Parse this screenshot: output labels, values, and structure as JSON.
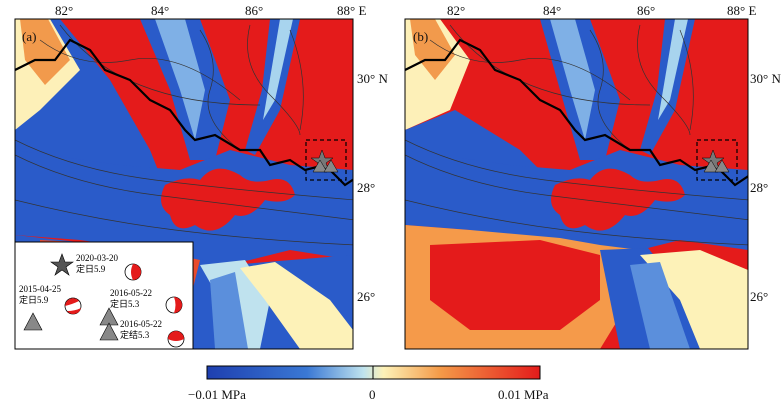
{
  "panels": [
    {
      "label": "(a)",
      "lon_ticks": [
        "82°",
        "84°",
        "86°",
        "88° E"
      ],
      "lat_ticks": [
        "30° N",
        "28°",
        "26°"
      ]
    },
    {
      "label": "(b)",
      "lon_ticks": [
        "82°",
        "84°",
        "86°",
        "88° E"
      ],
      "lat_ticks": [
        "30° N",
        "28°",
        "26°"
      ]
    }
  ],
  "legend": {
    "items": [
      {
        "date": "2020-03-20",
        "place": "定日5.9",
        "symbol": "star"
      },
      {
        "date": "2015-04-25",
        "place": "定日5.9",
        "symbol": "triangle"
      },
      {
        "date": "2016-05-22",
        "place": "定日5.3",
        "symbol": "triangle"
      },
      {
        "date": "2016-05-22",
        "place": "定结5.3",
        "symbol": "triangle"
      }
    ]
  },
  "colorbar": {
    "min_label": "−0.01 MPa",
    "mid_label": "0",
    "max_label": "0.01 MPa",
    "colors": [
      "#1e3fb0",
      "#3a78d4",
      "#a8d8ea",
      "#fdf5c0",
      "#f7b560",
      "#e8432a",
      "#e41b1b"
    ]
  },
  "colors": {
    "positive": "#e41b1b",
    "negative": "#2255c8",
    "frame": "#000000"
  }
}
